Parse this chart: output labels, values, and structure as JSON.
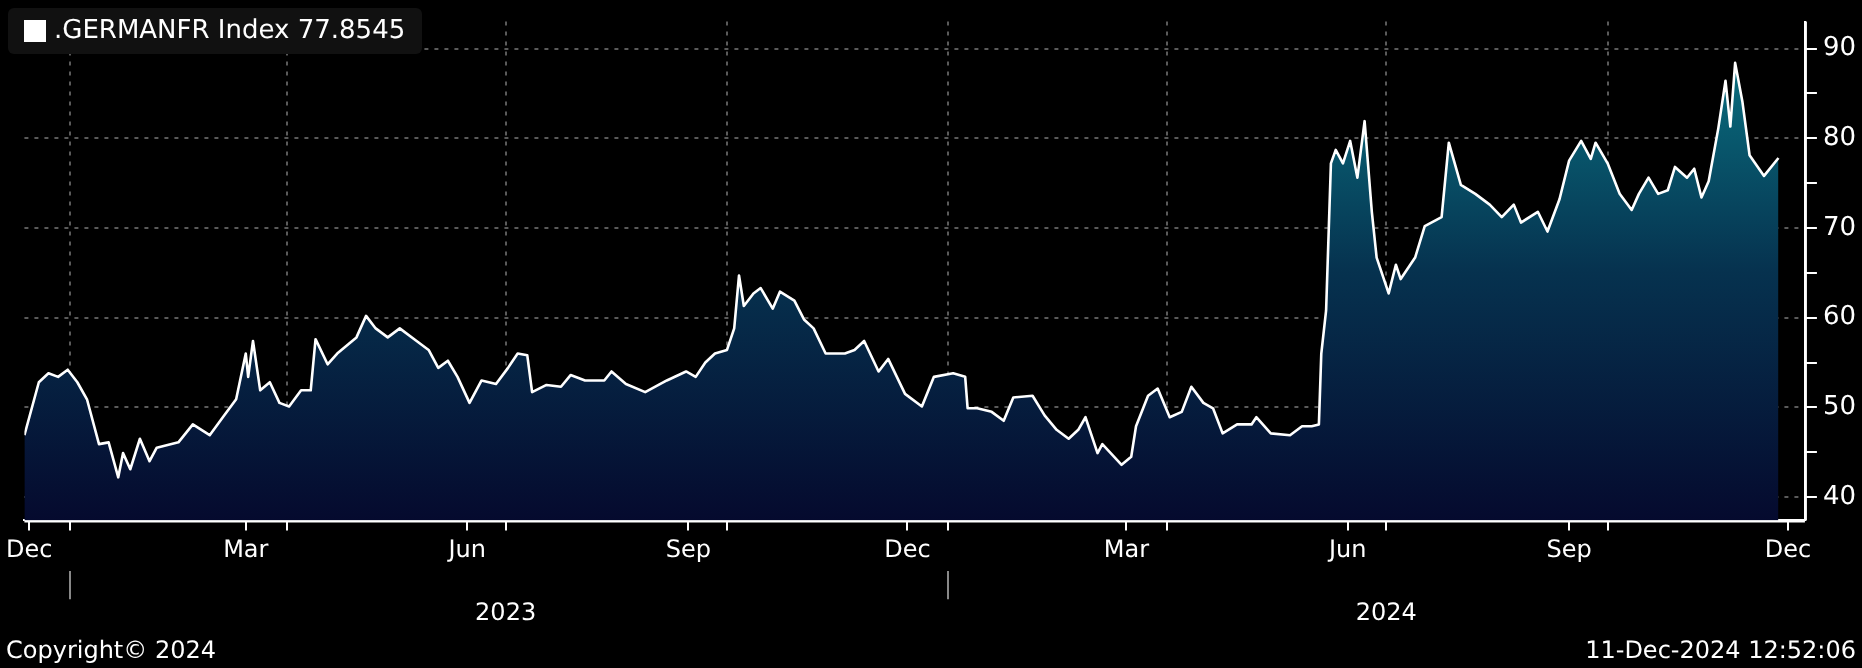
{
  "chart_data": {
    "type": "area",
    "legend": "top left",
    "grid": true,
    "marker": "none",
    "xlim": [
      "2022-12-13",
      "2024-12-22"
    ],
    "xticks": [
      {
        "value": "2022-12-15",
        "label": "Dec"
      },
      {
        "value": "2023-01-01",
        "label": null
      },
      {
        "value": "2023-03-15",
        "label": "Mar"
      },
      {
        "value": "2023-04-01",
        "label": null
      },
      {
        "value": "2023-06-15",
        "label": "Jun"
      },
      {
        "value": "2023-07-01",
        "label": null
      },
      {
        "value": "2023-09-15",
        "label": "Sep"
      },
      {
        "value": "2023-10-01",
        "label": null
      },
      {
        "value": "2023-12-15",
        "label": "Dec"
      },
      {
        "value": "2024-01-01",
        "label": null
      },
      {
        "value": "2024-03-15",
        "label": "Mar"
      },
      {
        "value": "2024-04-01",
        "label": null
      },
      {
        "value": "2024-06-15",
        "label": "Jun"
      },
      {
        "value": "2024-07-01",
        "label": null
      },
      {
        "value": "2024-09-15",
        "label": "Sep"
      },
      {
        "value": "2024-10-01",
        "label": null
      },
      {
        "value": "2024-12-15",
        "label": "Dec"
      }
    ],
    "ylim": [
      37.4,
      93
    ],
    "yticks": [
      40,
      {
        "value": 45,
        "label": null
      },
      50,
      {
        "value": 55,
        "label": null
      },
      60,
      {
        "value": 65,
        "label": null
      },
      70,
      {
        "value": 75,
        "label": null
      },
      80,
      {
        "value": 85,
        "label": null
      },
      90
    ],
    "x2lim": [
      "2022-12-13",
      "2024-12-22"
    ],
    "x2ticks": [
      {
        "value": "2023-01-01",
        "label": null
      },
      {
        "value": "2023-07-01",
        "label": "2023"
      },
      {
        "value": "2024-01-01",
        "label": null
      },
      {
        "value": "2024-07-01",
        "label": "2024"
      }
    ],
    "annotations": [
      "Copyright© 2024",
      "11-Dec-2024 12:52:06"
    ],
    "series": [
      {
        "name": ".GERMANFR Index 77.8545",
        "color": "#ffffff",
        "x": [
          "2022-12-13",
          "2022-12-19",
          "2022-12-23",
          "2022-12-27",
          "2022-12-31",
          "2023-01-04",
          "2023-01-08",
          "2023-01-13",
          "2023-01-17",
          "2023-01-21",
          "2023-01-23",
          "2023-01-26",
          "2023-01-30",
          "2023-02-03",
          "2023-02-06",
          "2023-02-15",
          "2023-02-21",
          "2023-02-28",
          "2023-03-06",
          "2023-03-11",
          "2023-03-15",
          "2023-03-16",
          "2023-03-18",
          "2023-03-21",
          "2023-03-25",
          "2023-03-29",
          "2023-04-02",
          "2023-04-07",
          "2023-04-11",
          "2023-04-13",
          "2023-04-18",
          "2023-04-22",
          "2023-04-30",
          "2023-05-04",
          "2023-05-08",
          "2023-05-13",
          "2023-05-18",
          "2023-05-25",
          "2023-05-30",
          "2023-06-03",
          "2023-06-07",
          "2023-06-11",
          "2023-06-16",
          "2023-06-21",
          "2023-06-27",
          "2023-07-02",
          "2023-07-06",
          "2023-07-10",
          "2023-07-12",
          "2023-07-18",
          "2023-07-24",
          "2023-07-28",
          "2023-08-03",
          "2023-08-11",
          "2023-08-14",
          "2023-08-20",
          "2023-08-28",
          "2023-09-06",
          "2023-09-14",
          "2023-09-18",
          "2023-09-22",
          "2023-09-26",
          "2023-10-01",
          "2023-10-04",
          "2023-10-06",
          "2023-10-08",
          "2023-10-12",
          "2023-10-15",
          "2023-10-20",
          "2023-10-23",
          "2023-10-29",
          "2023-11-02",
          "2023-11-06",
          "2023-11-11",
          "2023-11-19",
          "2023-11-23",
          "2023-11-27",
          "2023-12-03",
          "2023-12-07",
          "2023-12-14",
          "2023-12-21",
          "2023-12-26",
          "2024-01-03",
          "2024-01-08",
          "2024-01-09",
          "2024-01-13",
          "2024-01-19",
          "2024-01-24",
          "2024-01-28",
          "2024-02-05",
          "2024-02-10",
          "2024-02-15",
          "2024-02-20",
          "2024-02-24",
          "2024-02-27",
          "2024-03-03",
          "2024-03-05",
          "2024-03-13",
          "2024-03-17",
          "2024-03-19",
          "2024-03-24",
          "2024-03-28",
          "2024-04-02",
          "2024-04-07",
          "2024-04-11",
          "2024-04-16",
          "2024-04-20",
          "2024-04-24",
          "2024-04-30",
          "2024-05-06",
          "2024-05-08",
          "2024-05-14",
          "2024-05-22",
          "2024-05-27",
          "2024-05-31",
          "2024-06-03",
          "2024-06-04",
          "2024-06-06",
          "2024-06-08",
          "2024-06-10",
          "2024-06-13",
          "2024-06-16",
          "2024-06-19",
          "2024-06-22",
          "2024-06-25",
          "2024-06-27",
          "2024-07-02",
          "2024-07-05",
          "2024-07-07",
          "2024-07-13",
          "2024-07-17",
          "2024-07-24",
          "2024-07-27",
          "2024-08-01",
          "2024-08-07",
          "2024-08-13",
          "2024-08-18",
          "2024-08-23",
          "2024-08-26",
          "2024-09-02",
          "2024-09-06",
          "2024-09-11",
          "2024-09-15",
          "2024-09-20",
          "2024-09-24",
          "2024-09-26",
          "2024-10-01",
          "2024-10-06",
          "2024-10-11",
          "2024-10-14",
          "2024-10-18",
          "2024-10-22",
          "2024-10-26",
          "2024-10-29",
          "2024-11-03",
          "2024-11-06",
          "2024-11-09",
          "2024-11-12",
          "2024-11-16",
          "2024-11-19",
          "2024-11-21",
          "2024-11-23",
          "2024-11-26",
          "2024-11-29",
          "2024-12-05",
          "2024-12-11"
        ],
        "values": [
          46.9,
          52.8,
          53.8,
          53.4,
          54.2,
          52.8,
          50.9,
          45.9,
          46.1,
          42.2,
          44.9,
          43.1,
          46.5,
          44,
          45.5,
          46.1,
          48.1,
          46.9,
          49.1,
          50.9,
          56,
          53.4,
          57.4,
          51.9,
          52.8,
          50.5,
          50.1,
          51.9,
          51.9,
          57.6,
          54.8,
          56,
          57.8,
          60.2,
          58.8,
          57.8,
          58.8,
          57.4,
          56.4,
          54.4,
          55.2,
          53.4,
          50.5,
          53,
          52.6,
          54.4,
          56,
          55.8,
          51.7,
          52.5,
          52.3,
          53.6,
          53,
          53,
          54,
          52.6,
          51.7,
          53,
          54,
          53.4,
          55,
          56,
          56.4,
          58.8,
          64.7,
          61.3,
          62.7,
          63.3,
          61,
          62.9,
          61.9,
          59.8,
          58.8,
          56,
          56,
          56.4,
          57.4,
          54,
          55.4,
          51.5,
          50.1,
          53.4,
          53.8,
          53.4,
          49.9,
          49.9,
          49.5,
          48.5,
          51.1,
          51.3,
          49.1,
          47.5,
          46.5,
          47.5,
          48.9,
          44.9,
          45.9,
          43.6,
          44.5,
          47.9,
          51.3,
          52.1,
          48.9,
          49.5,
          52.3,
          50.5,
          49.9,
          47.1,
          48.1,
          48.1,
          48.9,
          47.1,
          46.9,
          47.9,
          47.9,
          48.1,
          56,
          60.8,
          77.2,
          78.7,
          77.2,
          79.7,
          75.6,
          81.9,
          71.8,
          66.7,
          62.7,
          65.9,
          64.3,
          66.7,
          70.2,
          71.2,
          79.5,
          74.8,
          73.8,
          72.6,
          71.2,
          72.6,
          70.6,
          71.8,
          69.6,
          73.2,
          77.5,
          79.7,
          77.7,
          79.5,
          77.2,
          73.8,
          72,
          73.8,
          75.6,
          73.8,
          74.2,
          76.8,
          75.6,
          76.6,
          73.4,
          75.2,
          81.1,
          86.4,
          81.3,
          88.4,
          84.1,
          78.1,
          75.8,
          77.8
        ]
      }
    ]
  }
}
